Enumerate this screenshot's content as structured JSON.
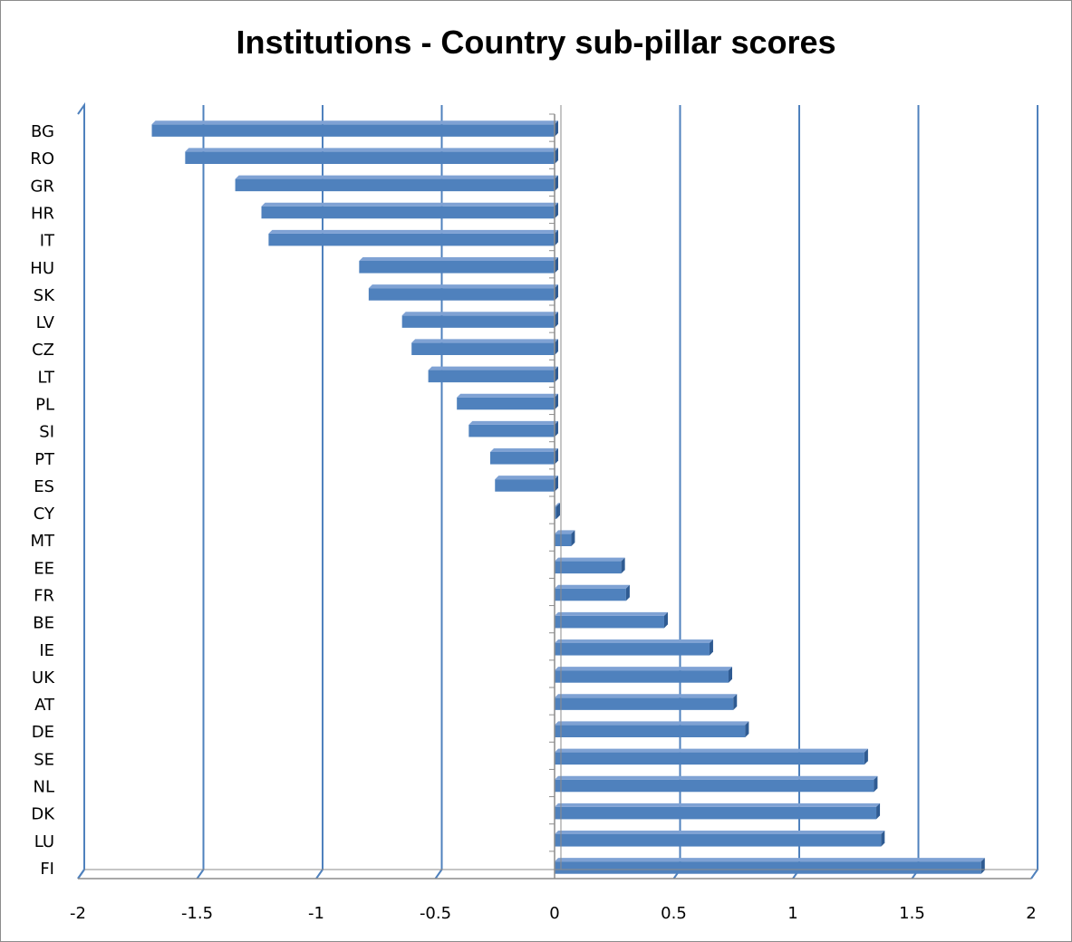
{
  "chart_data": {
    "type": "bar",
    "orientation": "horizontal",
    "title": "Institutions - Country sub-pillar scores",
    "xlabel": "",
    "ylabel": "",
    "xlim": [
      -2,
      2
    ],
    "x_ticks": [
      "-2",
      "-1.5",
      "-1",
      "-0.5",
      "0",
      "0.5",
      "1",
      "1.5",
      "2"
    ],
    "x_tick_values": [
      -2,
      -1.5,
      -1,
      -0.5,
      0,
      0.5,
      1,
      1.5,
      2
    ],
    "grid": "vertical major gridlines",
    "legend": "none",
    "bar_color": "#4f81bd",
    "categories": [
      "BG",
      "RO",
      "GR",
      "HR",
      "IT",
      "HU",
      "SK",
      "LV",
      "CZ",
      "LT",
      "PL",
      "SI",
      "PT",
      "ES",
      "CY",
      "MT",
      "EE",
      "FR",
      "BE",
      "IE",
      "UK",
      "AT",
      "DE",
      "SE",
      "NL",
      "DK",
      "LU",
      "FI"
    ],
    "values": [
      -1.69,
      -1.55,
      -1.34,
      -1.23,
      -1.2,
      -0.82,
      -0.78,
      -0.64,
      -0.6,
      -0.53,
      -0.41,
      -0.36,
      -0.27,
      -0.25,
      0.0,
      0.07,
      0.28,
      0.3,
      0.46,
      0.65,
      0.73,
      0.75,
      0.8,
      1.3,
      1.34,
      1.35,
      1.37,
      1.79
    ]
  }
}
